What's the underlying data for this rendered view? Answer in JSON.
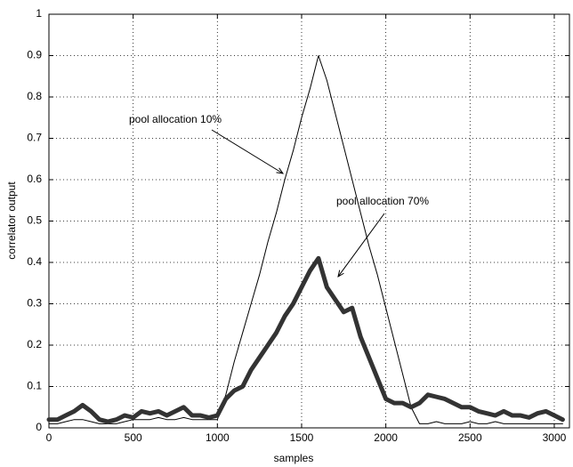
{
  "chart_data": {
    "type": "line",
    "x_label": "samples",
    "y_label": "correlator output",
    "annotations": [
      "pool allocation 10%",
      "pool allocation 70%"
    ],
    "x": [
      0,
      50,
      100,
      150,
      200,
      250,
      300,
      350,
      400,
      450,
      500,
      550,
      600,
      650,
      700,
      750,
      800,
      850,
      900,
      950,
      1000,
      1050,
      1100,
      1150,
      1200,
      1250,
      1300,
      1350,
      1400,
      1450,
      1500,
      1550,
      1600,
      1650,
      1700,
      1750,
      1800,
      1850,
      1900,
      1950,
      2000,
      2050,
      2100,
      2150,
      2200,
      2250,
      2300,
      2350,
      2400,
      2450,
      2500,
      2550,
      2600,
      2650,
      2700,
      2750,
      2800,
      2850,
      2900,
      2950,
      3000,
      3050
    ],
    "series": [
      {
        "color": "#000000",
        "line_width": 1,
        "values": [
          0.01,
          0.01,
          0.015,
          0.02,
          0.02,
          0.015,
          0.01,
          0.01,
          0.01,
          0.015,
          0.02,
          0.02,
          0.02,
          0.025,
          0.02,
          0.02,
          0.025,
          0.02,
          0.02,
          0.02,
          0.02,
          0.08,
          0.16,
          0.23,
          0.3,
          0.37,
          0.45,
          0.52,
          0.6,
          0.67,
          0.75,
          0.82,
          0.9,
          0.84,
          0.76,
          0.68,
          0.6,
          0.52,
          0.44,
          0.37,
          0.29,
          0.21,
          0.13,
          0.05,
          0.01,
          0.01,
          0.015,
          0.01,
          0.01,
          0.01,
          0.015,
          0.01,
          0.01,
          0.015,
          0.01,
          0.01,
          0.01,
          0.01,
          0.01,
          0.01,
          0.01,
          0.01
        ]
      },
      {
        "color": "#333333",
        "line_width": 5,
        "values": [
          0.02,
          0.02,
          0.03,
          0.04,
          0.055,
          0.04,
          0.02,
          0.015,
          0.02,
          0.03,
          0.025,
          0.04,
          0.035,
          0.04,
          0.03,
          0.04,
          0.05,
          0.03,
          0.03,
          0.025,
          0.03,
          0.07,
          0.09,
          0.1,
          0.14,
          0.17,
          0.2,
          0.23,
          0.27,
          0.3,
          0.34,
          0.38,
          0.41,
          0.34,
          0.31,
          0.28,
          0.29,
          0.22,
          0.17,
          0.12,
          0.07,
          0.06,
          0.06,
          0.05,
          0.06,
          0.08,
          0.075,
          0.07,
          0.06,
          0.05,
          0.05,
          0.04,
          0.035,
          0.03,
          0.04,
          0.03,
          0.03,
          0.025,
          0.035,
          0.04,
          0.03,
          0.02
        ]
      }
    ],
    "xlim": [
      0,
      3090
    ],
    "ylim": [
      0,
      1
    ],
    "xticks": [
      0,
      500,
      1000,
      1500,
      2000,
      2500,
      3000
    ],
    "yticks": [
      0,
      0.1,
      0.2,
      0.3,
      0.4,
      0.5,
      0.6,
      0.7,
      0.8,
      0.9,
      1
    ],
    "grid": true
  }
}
